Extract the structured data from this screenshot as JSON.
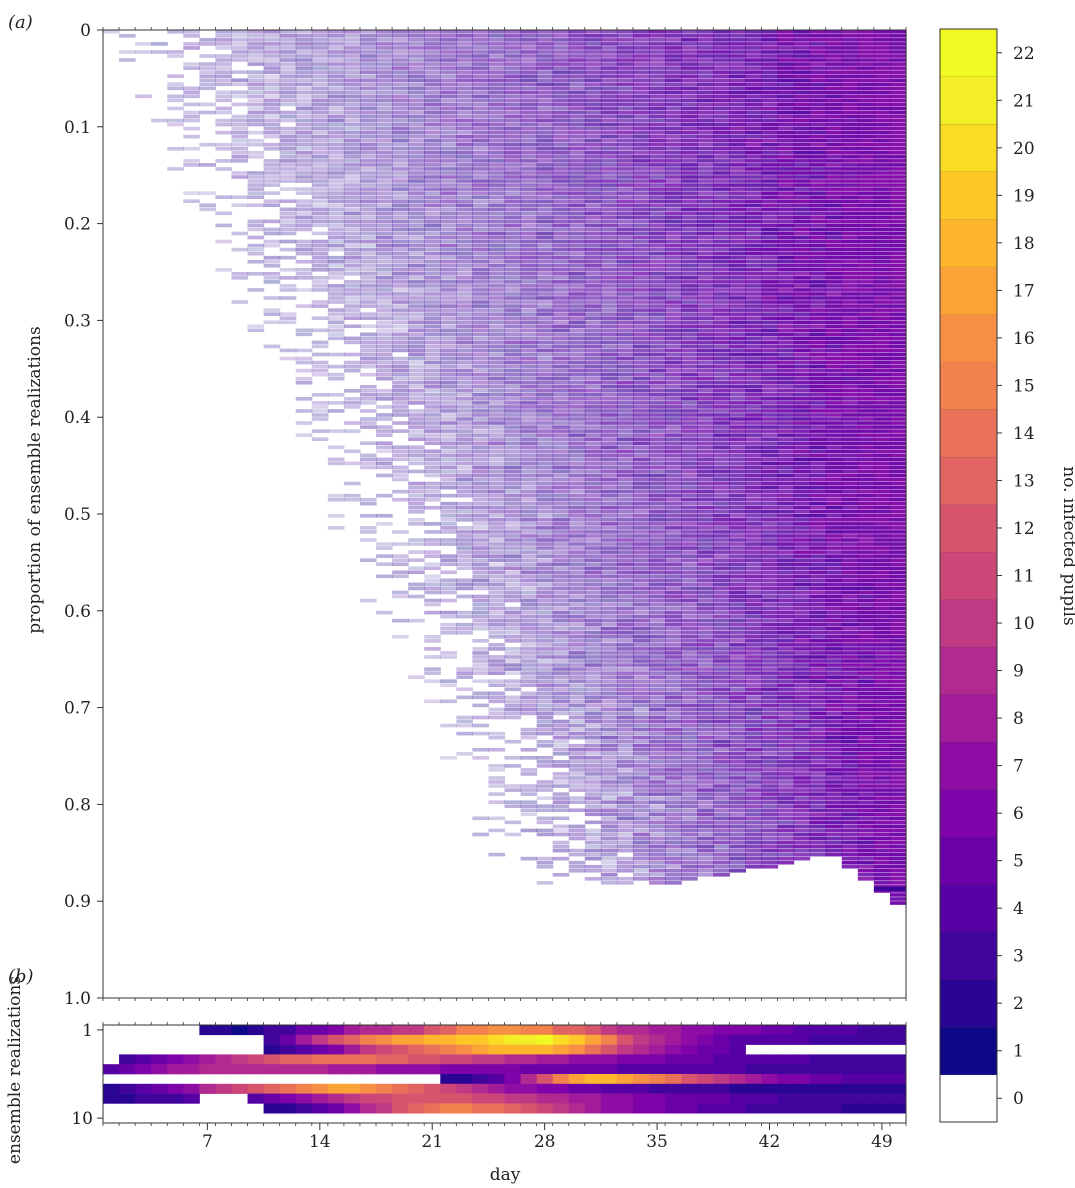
{
  "panels": {
    "a_label": "(a)",
    "b_label": "(b)"
  },
  "chart_data": [
    {
      "panel": "(a)",
      "type": "heatmap",
      "xlabel": "",
      "ylabel": "proportion of ensemble realizations",
      "xlim": [
        0,
        50
      ],
      "ylim": [
        0,
        1.0
      ],
      "y_inverted": true,
      "yticks": [
        "0",
        "0.1",
        "0.2",
        "0.3",
        "0.4",
        "0.5",
        "0.6",
        "0.7",
        "0.8",
        "0.9",
        "1.0"
      ],
      "colormap": "plasma",
      "approx_outbreak_fraction_by_day": [
        [
          0,
          0.87
        ],
        [
          14,
          0.876
        ],
        [
          28,
          0.88
        ],
        [
          35,
          0.88
        ],
        [
          42,
          0.86
        ],
        [
          45,
          0.85
        ],
        [
          49,
          0.9
        ]
      ]
    },
    {
      "panel": "(b)",
      "type": "heatmap",
      "xlabel": "day",
      "ylabel": "ensemble realizations",
      "xticks": [
        7,
        14,
        21,
        28,
        35,
        42,
        49
      ],
      "yticks": [
        "1",
        "10"
      ],
      "colormap": "plasma",
      "note": "10 realizations x 50 days, values = no. infected pupils",
      "rows": [
        [
          0,
          0,
          0,
          0,
          0,
          0,
          2,
          2,
          1,
          2,
          3,
          3,
          5,
          5,
          6,
          8,
          9,
          9,
          10,
          10,
          12,
          13,
          15,
          15,
          16,
          16,
          15,
          15,
          13,
          13,
          12,
          10,
          9,
          9,
          8,
          8,
          7,
          7,
          6,
          6,
          6,
          5,
          5,
          4,
          4,
          4,
          4,
          3,
          3,
          3
        ],
        [
          0,
          0,
          0,
          0,
          0,
          0,
          0,
          0,
          0,
          0,
          3,
          5,
          8,
          10,
          12,
          13,
          15,
          16,
          17,
          17,
          18,
          18,
          19,
          19,
          20,
          21,
          21,
          22,
          20,
          19,
          17,
          15,
          12,
          10,
          9,
          8,
          7,
          6,
          5,
          4,
          4,
          4,
          4,
          4,
          3,
          3,
          3,
          3,
          3,
          3
        ],
        [
          0,
          0,
          0,
          0,
          0,
          0,
          0,
          0,
          0,
          0,
          2,
          3,
          4,
          5,
          6,
          8,
          10,
          11,
          12,
          13,
          14,
          15,
          16,
          17,
          18,
          18,
          18,
          18,
          17,
          16,
          14,
          12,
          10,
          9,
          8,
          7,
          6,
          5,
          5,
          4,
          0,
          0,
          0,
          0,
          0,
          0,
          0,
          0,
          0,
          0
        ],
        [
          0,
          3,
          4,
          5,
          6,
          7,
          8,
          9,
          10,
          11,
          12,
          13,
          13,
          14,
          14,
          14,
          14,
          13,
          13,
          12,
          12,
          11,
          11,
          10,
          10,
          9,
          9,
          8,
          8,
          7,
          7,
          7,
          6,
          6,
          6,
          5,
          5,
          5,
          4,
          4,
          4,
          4,
          4,
          4,
          3,
          3,
          3,
          3,
          3,
          3
        ],
        [
          4,
          5,
          6,
          7,
          8,
          8,
          9,
          9,
          9,
          9,
          9,
          9,
          9,
          9,
          8,
          8,
          8,
          7,
          7,
          7,
          7,
          6,
          6,
          6,
          6,
          6,
          5,
          5,
          5,
          5,
          5,
          5,
          4,
          4,
          4,
          4,
          4,
          4,
          4,
          4,
          3,
          3,
          3,
          3,
          3,
          3,
          3,
          3,
          3,
          3
        ],
        [
          0,
          0,
          0,
          0,
          0,
          0,
          0,
          0,
          0,
          0,
          0,
          0,
          0,
          0,
          0,
          0,
          0,
          0,
          0,
          0,
          0,
          2,
          2,
          3,
          4,
          6,
          9,
          12,
          15,
          17,
          18,
          18,
          17,
          16,
          15,
          14,
          12,
          11,
          10,
          9,
          8,
          7,
          6,
          6,
          5,
          5,
          4,
          4,
          4,
          4
        ],
        [
          2,
          3,
          4,
          5,
          6,
          7,
          9,
          10,
          11,
          12,
          13,
          14,
          15,
          16,
          17,
          17,
          16,
          15,
          14,
          13,
          12,
          11,
          10,
          9,
          8,
          7,
          7,
          6,
          6,
          5,
          5,
          4,
          4,
          4,
          3,
          3,
          3,
          3,
          3,
          2,
          2,
          2,
          2,
          2,
          2,
          2,
          2,
          2,
          2,
          2
        ],
        [
          2,
          2,
          3,
          3,
          3,
          4,
          0,
          0,
          0,
          4,
          5,
          6,
          7,
          8,
          9,
          10,
          11,
          11,
          12,
          12,
          12,
          12,
          12,
          11,
          11,
          10,
          10,
          9,
          9,
          8,
          8,
          7,
          7,
          6,
          6,
          5,
          5,
          5,
          5,
          4,
          4,
          4,
          3,
          3,
          3,
          3,
          3,
          3,
          3,
          3
        ],
        [
          0,
          0,
          0,
          0,
          0,
          0,
          0,
          0,
          0,
          0,
          2,
          2,
          3,
          4,
          5,
          7,
          9,
          10,
          12,
          13,
          14,
          15,
          15,
          14,
          14,
          13,
          12,
          11,
          10,
          9,
          8,
          7,
          7,
          6,
          6,
          5,
          5,
          4,
          4,
          4,
          3,
          3,
          3,
          3,
          3,
          3,
          2,
          2,
          2,
          2
        ],
        [
          0,
          0,
          0,
          0,
          0,
          0,
          0,
          0,
          0,
          0,
          0,
          0,
          0,
          0,
          0,
          0,
          0,
          0,
          0,
          0,
          0,
          0,
          0,
          0,
          0,
          0,
          0,
          0,
          0,
          0,
          0,
          0,
          0,
          0,
          0,
          0,
          0,
          0,
          0,
          0,
          0,
          0,
          0,
          0,
          0,
          0,
          0,
          0,
          0,
          0
        ]
      ]
    },
    {
      "panel": "colorbar",
      "type": "colorbar",
      "label": "no. infected pupils",
      "ticks": [
        "0",
        "1",
        "2",
        "3",
        "4",
        "5",
        "6",
        "7",
        "8",
        "9",
        "10",
        "11",
        "12",
        "13",
        "14",
        "15",
        "16",
        "17",
        "18",
        "19",
        "20",
        "21",
        "22"
      ]
    }
  ]
}
